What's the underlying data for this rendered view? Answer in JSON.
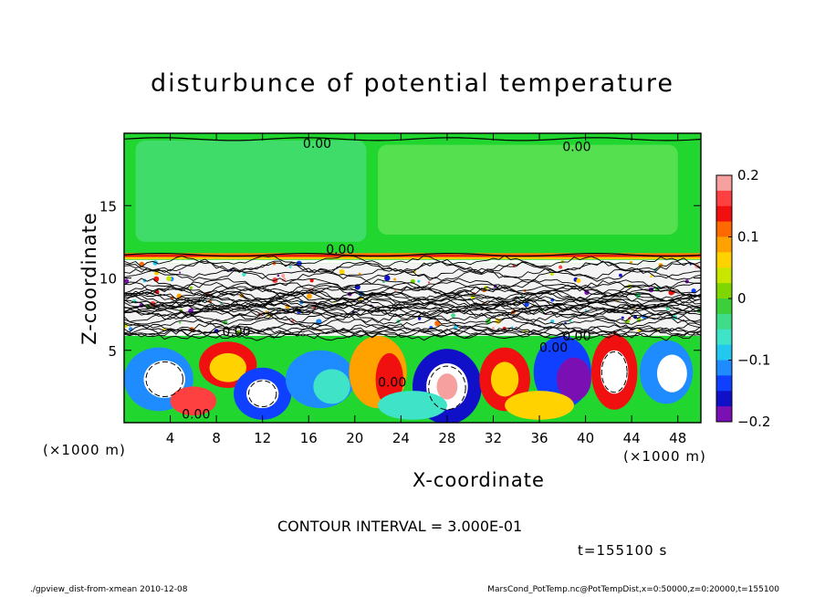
{
  "chart_data": {
    "type": "heatmap",
    "title": "disturbunce of potential temperature",
    "xlabel": "X-coordinate",
    "ylabel": "Z-coordinate",
    "x_unit_label": "(×1000 m)",
    "x_unit_label_right": "(×1000 m)",
    "xlim": [
      0,
      50
    ],
    "ylim": [
      0,
      20
    ],
    "x_ticks": [
      4,
      8,
      12,
      16,
      20,
      24,
      28,
      32,
      36,
      40,
      44,
      48
    ],
    "y_ticks": [
      5,
      10,
      15
    ],
    "colorbar": {
      "range": [
        -0.2,
        0.2
      ],
      "ticks": [
        "0.2",
        "0.1",
        "0",
        "−0.1",
        "−0.2"
      ],
      "tick_values": [
        0.2,
        0.1,
        0,
        -0.1,
        -0.2
      ],
      "colors": [
        "#f7a0a0",
        "#ff4040",
        "#f01010",
        "#ff6a00",
        "#ffa200",
        "#ffd200",
        "#c8e600",
        "#7fd600",
        "#3ccf3c",
        "#3fdc8a",
        "#3fe3c7",
        "#22c8ee",
        "#1e8cff",
        "#1040ff",
        "#1010c8",
        "#7a10b4"
      ]
    },
    "contour_labels": [
      "0.00",
      "0.00",
      "0.00",
      "0.00",
      "0.00",
      "0.00",
      "0.00",
      "0.00"
    ],
    "contour_interval": "CONTOUR INTERVAL = 3.000E-01",
    "time_label": "t=155100 s"
  },
  "footer": {
    "left": "./gpview_dist-from-xmean  2010-12-08",
    "right": "MarsCond_PotTemp.nc@PotTempDist,x=0:50000,z=0:20000,t=155100"
  }
}
